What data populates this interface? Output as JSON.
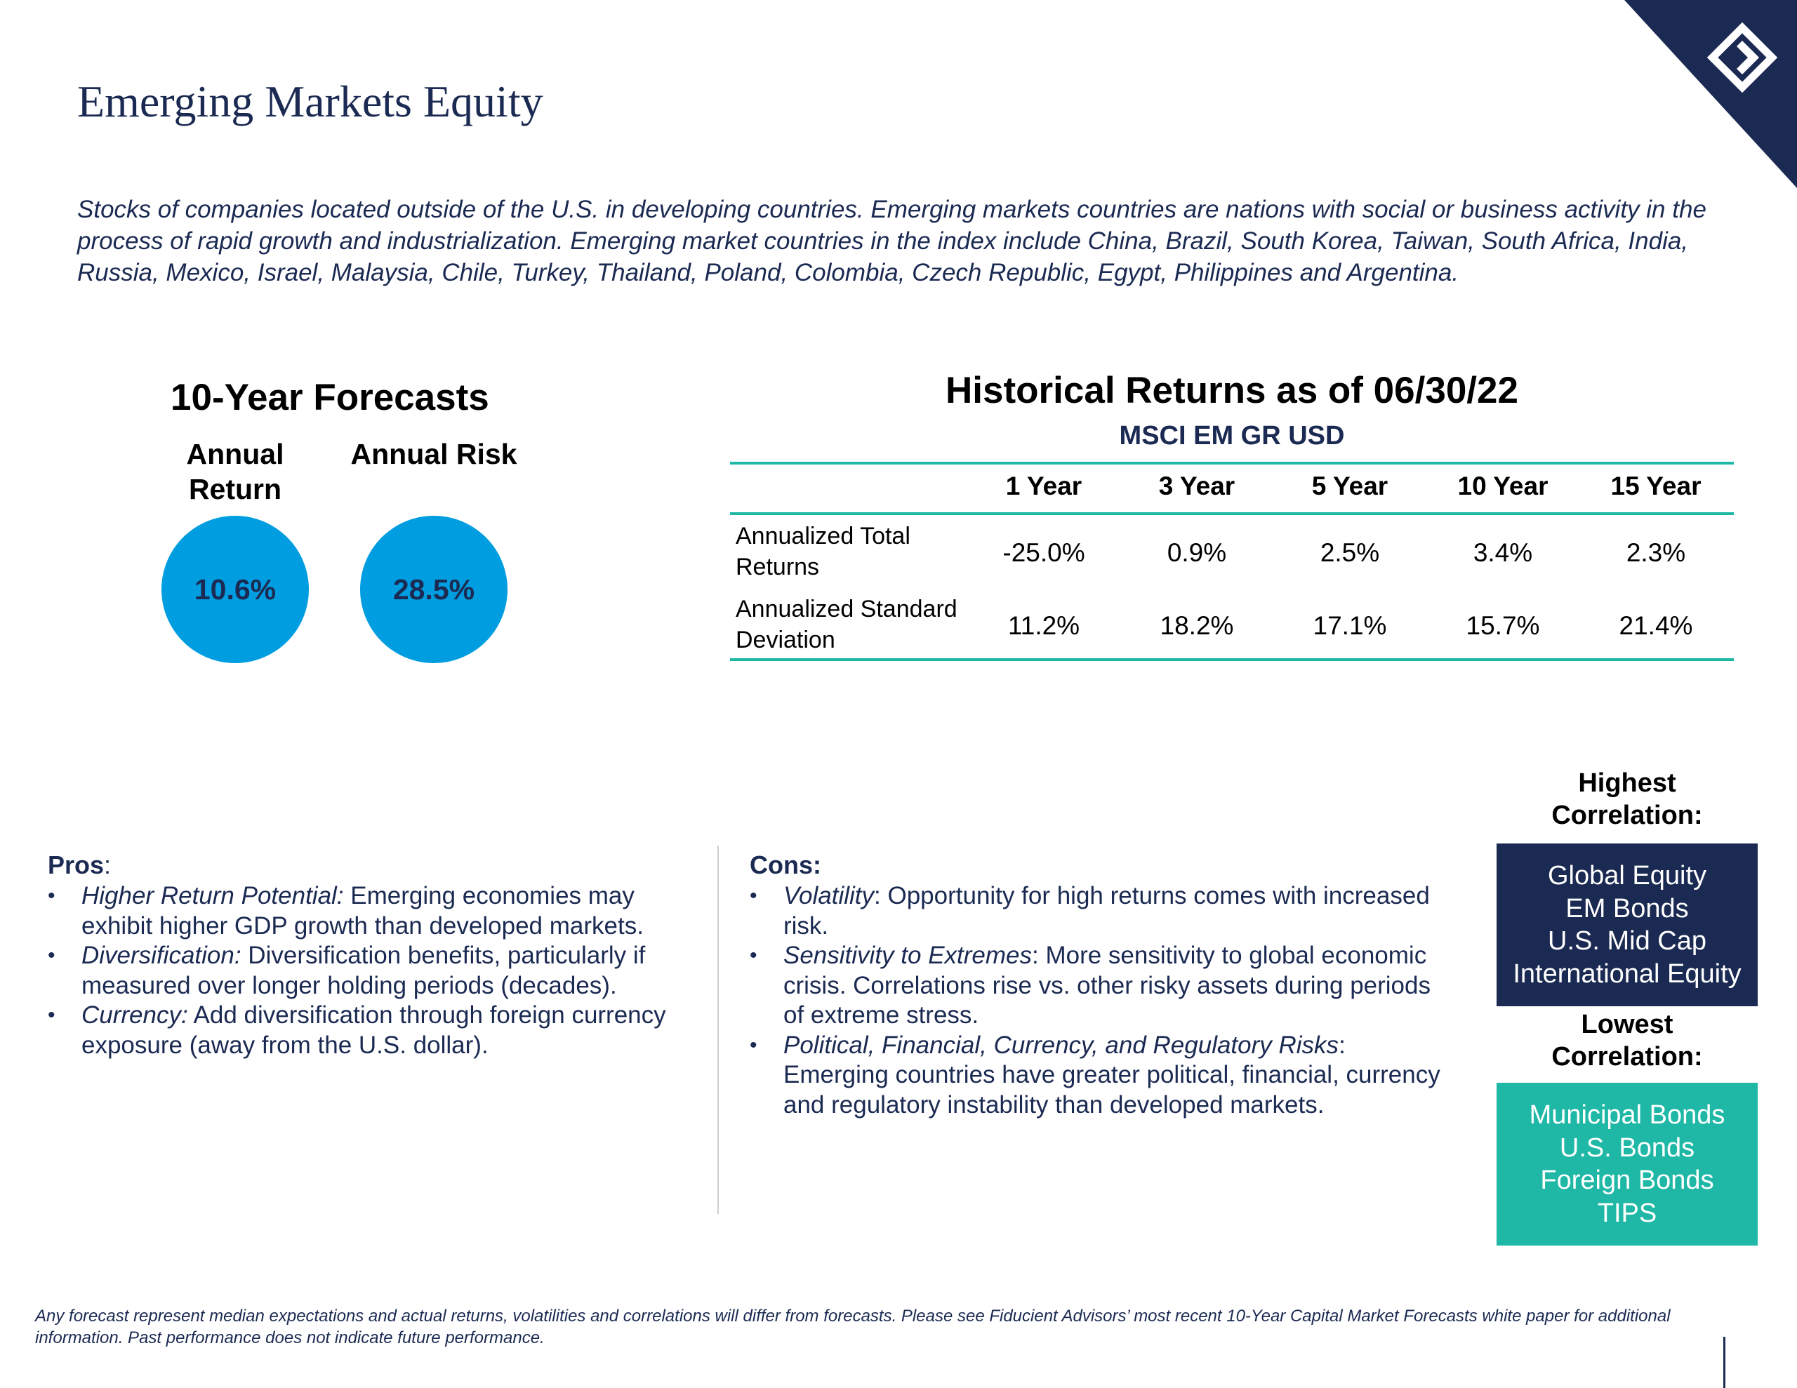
{
  "header": {
    "title": "Emerging Markets Equity",
    "description": "Stocks of companies located outside of the U.S. in developing countries. Emerging markets countries are nations with social or business activity in the process of rapid growth and industrialization. Emerging market countries in the index include China, Brazil, South Korea, Taiwan, South Africa, India, Russia, Mexico, Israel, Malaysia, Chile, Turkey, Thailand, Poland, Colombia, Czech Republic, Egypt, Philippines and Argentina."
  },
  "forecasts": {
    "title": "10-Year Forecasts",
    "annual_return_label": "Annual Return",
    "annual_return_value": "10.6%",
    "annual_risk_label": "Annual Risk",
    "annual_risk_value": "28.5%"
  },
  "historical": {
    "title": "Historical Returns as of 06/30/22",
    "index_name": "MSCI EM GR USD",
    "columns": [
      "1 Year",
      "3 Year",
      "5 Year",
      "10 Year",
      "15 Year"
    ],
    "rows": [
      {
        "label": "Annualized Total Returns",
        "values": [
          "-25.0%",
          "0.9%",
          "2.5%",
          "3.4%",
          "2.3%"
        ]
      },
      {
        "label": "Annualized Standard Deviation",
        "values": [
          "11.2%",
          "18.2%",
          "17.1%",
          "15.7%",
          "21.4%"
        ]
      }
    ]
  },
  "pros": {
    "heading": "Pros",
    "heading_suffix": ":",
    "items": [
      {
        "term": "Higher Return Potential:",
        "text": " Emerging economies may exhibit higher GDP growth than developed markets."
      },
      {
        "term": "Diversification:",
        "text": " Diversification benefits, particularly if measured over longer holding periods (decades)."
      },
      {
        "term": "Currency:",
        "text": " Add diversification through foreign currency exposure (away from the U.S. dollar)."
      }
    ]
  },
  "cons": {
    "heading": "Cons:",
    "items": [
      {
        "term": "Volatility",
        "text": ": Opportunity for high returns comes with increased risk."
      },
      {
        "term": "Sensitivity to Extremes",
        "text": ": More sensitivity to global economic crisis. Correlations rise vs. other risky assets during periods of extreme stress."
      },
      {
        "term": "Political, Financial, Currency, and Regulatory Risks",
        "text": ": Emerging countries have greater political, financial, currency and regulatory instability than developed markets."
      }
    ]
  },
  "correlation": {
    "highest_label": "Highest Correlation:",
    "highest": [
      "Global Equity",
      "EM Bonds",
      "U.S. Mid Cap",
      "International Equity"
    ],
    "lowest_label": "Lowest Correlation:",
    "lowest": [
      "Municipal Bonds",
      "U.S. Bonds",
      "Foreign Bonds",
      "TIPS"
    ]
  },
  "footnote": "Any forecast represent median expectations and actual returns, volatilities and correlations will differ from forecasts.  Please see Fiducient Advisors’ most recent 10-Year Capital Market Forecasts white paper for additional information.  Past performance does not indicate future performance.",
  "colors": {
    "navy": "#1b2a52",
    "teal": "#1fb8a6",
    "circle_blue": "#009ee0"
  },
  "icons": {
    "corner": "fiducient-logo-icon"
  }
}
